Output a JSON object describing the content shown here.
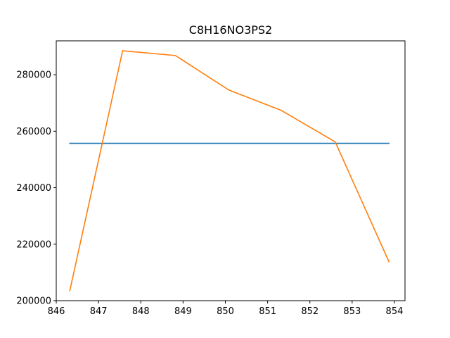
{
  "chart_data": {
    "type": "line",
    "title": "C8H16NO3PS2",
    "xlabel": "",
    "ylabel": "",
    "xlim": [
      846.0,
      854.25
    ],
    "ylim": [
      200000,
      292000
    ],
    "grid": false,
    "legend": "none",
    "x_ticks": [
      846,
      847,
      848,
      849,
      850,
      851,
      852,
      853,
      854
    ],
    "x_tick_labels": [
      "846",
      "847",
      "848",
      "849",
      "850",
      "851",
      "852",
      "853",
      "854"
    ],
    "y_ticks": [
      200000,
      220000,
      240000,
      260000,
      280000
    ],
    "y_tick_labels": [
      "200000",
      "220000",
      "240000",
      "260000",
      "280000"
    ],
    "series": [
      {
        "color": "#1f77b4",
        "x": [
          846.32,
          853.87
        ],
        "y": [
          255700,
          255700
        ]
      },
      {
        "color": "#ff7f0e",
        "x": [
          846.32,
          847.57,
          848.82,
          850.08,
          851.32,
          852.6,
          853.87
        ],
        "y": [
          203500,
          288500,
          286800,
          274600,
          267400,
          256200,
          213800
        ]
      }
    ]
  }
}
